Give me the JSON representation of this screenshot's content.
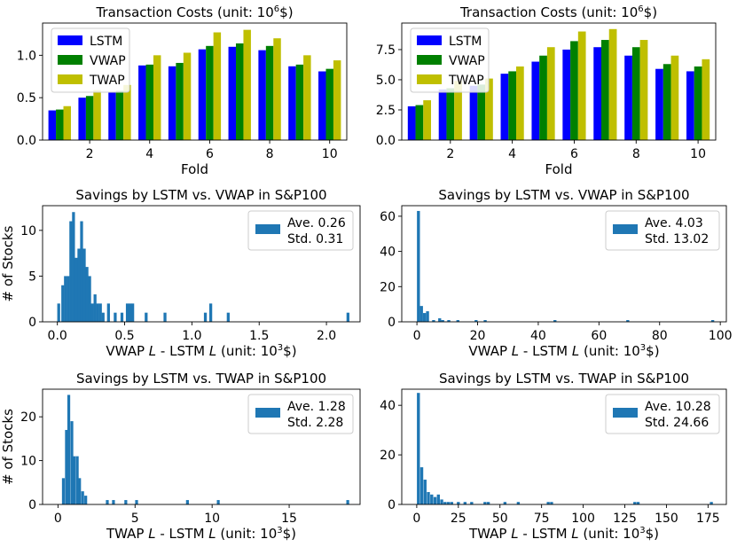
{
  "colors": {
    "lstm": "#0000ff",
    "vwap": "#008000",
    "twap": "#bfbf00",
    "hist": "#1f77b4"
  },
  "chart_data": [
    {
      "type": "bar",
      "title": "Transaction Costs (unit: 10",
      "title_sup": "6",
      "title_tail": "$)",
      "xlabel": "Fold",
      "ylabel": "",
      "categories": [
        1,
        2,
        3,
        4,
        5,
        6,
        7,
        8,
        9,
        10
      ],
      "ylim": [
        0,
        1.38
      ],
      "yticks": [
        0.0,
        0.5,
        1.0
      ],
      "ytick_labels": [
        "0.0",
        "0.5",
        "1.0"
      ],
      "xticks": [
        2,
        4,
        6,
        8,
        10
      ],
      "xtick_labels": [
        "2",
        "4",
        "6",
        "8",
        "10"
      ],
      "legend": "top-left",
      "series": [
        {
          "name": "LSTM",
          "color": "#0000ff",
          "values": [
            0.35,
            0.5,
            0.57,
            0.88,
            0.87,
            1.07,
            1.1,
            1.06,
            0.87,
            0.81
          ]
        },
        {
          "name": "VWAP",
          "color": "#008000",
          "values": [
            0.36,
            0.52,
            0.58,
            0.89,
            0.91,
            1.11,
            1.14,
            1.11,
            0.89,
            0.84
          ]
        },
        {
          "name": "TWAP",
          "color": "#bfbf00",
          "values": [
            0.4,
            0.59,
            0.65,
            1.0,
            1.03,
            1.27,
            1.3,
            1.2,
            1.0,
            0.94
          ]
        }
      ]
    },
    {
      "type": "bar",
      "title": "Transaction Costs (unit: 10",
      "title_sup": "6",
      "title_tail": "$)",
      "xlabel": "Fold",
      "ylabel": "",
      "categories": [
        1,
        2,
        3,
        4,
        5,
        6,
        7,
        8,
        9,
        10
      ],
      "ylim": [
        0,
        9.7
      ],
      "yticks": [
        0.0,
        2.5,
        5.0,
        7.5
      ],
      "ytick_labels": [
        "0.0",
        "2.5",
        "5.0",
        "7.5"
      ],
      "xticks": [
        2,
        4,
        6,
        8,
        10
      ],
      "xtick_labels": [
        "2",
        "4",
        "6",
        "8",
        "10"
      ],
      "legend": "top-left",
      "series": [
        {
          "name": "LSTM",
          "color": "#0000ff",
          "values": [
            2.8,
            4.2,
            4.5,
            5.5,
            6.5,
            7.5,
            7.7,
            7.0,
            5.9,
            5.7
          ]
        },
        {
          "name": "VWAP",
          "color": "#008000",
          "values": [
            2.9,
            4.3,
            4.6,
            5.7,
            7.0,
            8.2,
            8.3,
            7.7,
            6.3,
            6.1
          ]
        },
        {
          "name": "TWAP",
          "color": "#bfbf00",
          "values": [
            3.3,
            4.9,
            5.1,
            6.1,
            7.7,
            9.0,
            9.2,
            8.3,
            7.0,
            6.7
          ]
        }
      ]
    },
    {
      "type": "histogram",
      "title": "Savings by LSTM vs. VWAP in S&P100",
      "xlabel_parts": [
        "VWAP ",
        "L",
        " - LSTM ",
        "L",
        " (unit: 10",
        "3",
        "$)"
      ],
      "ylabel": "# of Stocks",
      "xlim": [
        -0.11,
        2.25
      ],
      "ylim": [
        0,
        12.7
      ],
      "xticks": [
        0.0,
        0.5,
        1.0,
        1.5,
        2.0
      ],
      "xtick_labels": [
        "0.0",
        "0.5",
        "1.0",
        "1.5",
        "2.0"
      ],
      "yticks": [
        0,
        5,
        10
      ],
      "ytick_labels": [
        "0",
        "5",
        "10"
      ],
      "bin_width": 0.0215,
      "bins": [
        [
          0.01,
          2
        ],
        [
          0.04,
          4
        ],
        [
          0.06,
          5
        ],
        [
          0.08,
          5
        ],
        [
          0.1,
          11
        ],
        [
          0.12,
          12
        ],
        [
          0.14,
          7
        ],
        [
          0.16,
          8
        ],
        [
          0.18,
          11
        ],
        [
          0.2,
          8
        ],
        [
          0.22,
          6
        ],
        [
          0.24,
          5
        ],
        [
          0.26,
          2
        ],
        [
          0.28,
          3
        ],
        [
          0.3,
          2
        ],
        [
          0.32,
          2
        ],
        [
          0.34,
          1
        ],
        [
          0.38,
          2
        ],
        [
          0.43,
          1
        ],
        [
          0.48,
          1
        ],
        [
          0.52,
          2
        ],
        [
          0.54,
          2
        ],
        [
          0.56,
          2
        ],
        [
          0.66,
          1
        ],
        [
          0.8,
          1
        ],
        [
          1.1,
          1
        ],
        [
          1.14,
          2
        ],
        [
          1.27,
          1
        ],
        [
          2.16,
          1
        ]
      ],
      "legend": {
        "position": "top-right",
        "line1": "Ave. 0.26",
        "line2": "Std. 0.31"
      }
    },
    {
      "type": "histogram",
      "title": "Savings by LSTM vs. VWAP in S&P100",
      "xlabel_parts": [
        "VWAP ",
        "L",
        " - LSTM ",
        "L",
        " (unit: 10",
        "3",
        "$)"
      ],
      "ylabel": "",
      "xlim": [
        -5,
        102
      ],
      "ylim": [
        0,
        66
      ],
      "xticks": [
        0,
        20,
        40,
        60,
        80,
        100
      ],
      "xtick_labels": [
        "0",
        "20",
        "40",
        "60",
        "80",
        "100"
      ],
      "yticks": [
        0,
        20,
        40,
        60
      ],
      "ytick_labels": [
        "0",
        "20",
        "40",
        "60"
      ],
      "bin_width": 0.98,
      "bins": [
        [
          0.5,
          63
        ],
        [
          1.5,
          9
        ],
        [
          2.5,
          5
        ],
        [
          3.5,
          6
        ],
        [
          5.5,
          1
        ],
        [
          7.5,
          2
        ],
        [
          8.5,
          1
        ],
        [
          10.5,
          1
        ],
        [
          13.5,
          1
        ],
        [
          19.5,
          1
        ],
        [
          22.5,
          1
        ],
        [
          45.5,
          1
        ],
        [
          69.5,
          1
        ],
        [
          97.5,
          1
        ]
      ],
      "legend": {
        "position": "top-right",
        "line1": "Ave. 4.03",
        "line2": "Std. 13.02"
      }
    },
    {
      "type": "histogram",
      "title": "Savings by LSTM vs. TWAP in S&P100",
      "xlabel_parts": [
        "TWAP ",
        "L",
        " - LSTM ",
        "L",
        " (unit: 10",
        "3",
        "$)"
      ],
      "ylabel": "# of Stocks",
      "xlim": [
        -1.0,
        19.6
      ],
      "ylim": [
        0,
        26.3
      ],
      "xticks": [
        0,
        5,
        10,
        15
      ],
      "xtick_labels": [
        "0",
        "5",
        "10",
        "15"
      ],
      "yticks": [
        0,
        10,
        20
      ],
      "ytick_labels": [
        "0",
        "10",
        "20"
      ],
      "bin_width": 0.185,
      "bins": [
        [
          0.35,
          6
        ],
        [
          0.55,
          17
        ],
        [
          0.7,
          25
        ],
        [
          0.9,
          19
        ],
        [
          1.05,
          11
        ],
        [
          1.25,
          11
        ],
        [
          1.4,
          6
        ],
        [
          1.6,
          3
        ],
        [
          1.8,
          2
        ],
        [
          3.2,
          1
        ],
        [
          3.6,
          1
        ],
        [
          4.4,
          1
        ],
        [
          5.1,
          1
        ],
        [
          8.4,
          1
        ],
        [
          10.4,
          1
        ],
        [
          18.8,
          1
        ]
      ],
      "legend": {
        "position": "top-right",
        "line1": "Ave. 1.28",
        "line2": "Std. 2.28"
      }
    },
    {
      "type": "histogram",
      "title": "Savings by LSTM vs. TWAP in S&P100",
      "xlabel_parts": [
        "TWAP ",
        "L",
        " - LSTM ",
        "L",
        " (unit: 10",
        "3",
        "$)"
      ],
      "ylabel": "",
      "xlim": [
        -9,
        186
      ],
      "ylim": [
        0,
        46.5
      ],
      "xticks": [
        0,
        25,
        50,
        75,
        100,
        125,
        150,
        175
      ],
      "xtick_labels": [
        "0",
        "25",
        "50",
        "75",
        "100",
        "125",
        "150",
        "175"
      ],
      "yticks": [
        0,
        20,
        40
      ],
      "ytick_labels": [
        "0",
        "20",
        "40"
      ],
      "bin_width": 1.8,
      "bins": [
        [
          1,
          45
        ],
        [
          3,
          15
        ],
        [
          5,
          10
        ],
        [
          7,
          5
        ],
        [
          9,
          4
        ],
        [
          11,
          3
        ],
        [
          13,
          4
        ],
        [
          15,
          2
        ],
        [
          17,
          1
        ],
        [
          19,
          1
        ],
        [
          21,
          1
        ],
        [
          25,
          1
        ],
        [
          29,
          1
        ],
        [
          33,
          1
        ],
        [
          41,
          1
        ],
        [
          43,
          1
        ],
        [
          53,
          1
        ],
        [
          61,
          1
        ],
        [
          79,
          1
        ],
        [
          81,
          1
        ],
        [
          131,
          1
        ],
        [
          133,
          1
        ],
        [
          177,
          1
        ]
      ],
      "legend": {
        "position": "top-right",
        "line1": "Ave. 10.28",
        "line2": "Std. 24.66"
      }
    }
  ]
}
